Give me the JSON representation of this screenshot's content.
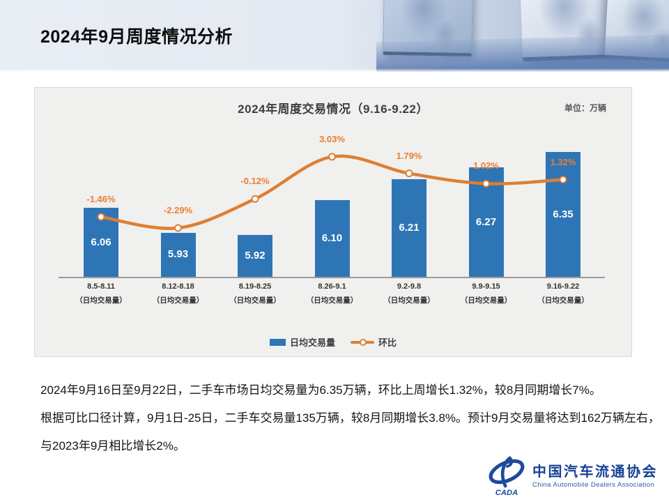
{
  "slide": {
    "title": "2024年9月周度情况分析"
  },
  "chart_data": {
    "type": "bar",
    "title": "2024年周度交易情况（9.16-9.22）",
    "unit_label": "单位：万辆",
    "categories": [
      "8.5-8.11",
      "8.12-8.18",
      "8.19-8.25",
      "8.26-9.1",
      "9.2-9.8",
      "9.9-9.15",
      "9.16-9.22"
    ],
    "category_sublabel": "（日均交易量）",
    "series": [
      {
        "name": "日均交易量",
        "type": "bar",
        "values": [
          6.06,
          5.93,
          5.92,
          6.1,
          6.21,
          6.27,
          6.35
        ],
        "value_labels": [
          "6.06",
          "5.93",
          "5.92",
          "6.10",
          "6.21",
          "6.27",
          "6.35"
        ],
        "color": "#2e75b6"
      },
      {
        "name": "环比",
        "type": "line",
        "values": [
          -1.46,
          -2.29,
          -0.12,
          3.03,
          1.79,
          1.02,
          1.32
        ],
        "value_labels": [
          "-1.46%",
          "-2.29%",
          "-0.12%",
          "3.03%",
          "1.79%",
          "1.02%",
          "1.32%"
        ],
        "color": "#de7e33"
      }
    ],
    "bar_axis_range": [
      5.7,
      6.5
    ],
    "pct_axis_visible": false,
    "grid": false,
    "legend_position": "bottom"
  },
  "body": {
    "lines": [
      "2024年9月16日至9月22日，二手车市场日均交易量为6.35万辆，环比上周增长1.32%，较8月同期增长7%。",
      "根据可比口径计算，9月1日-25日，二手车交易量135万辆，较8月同期增长3.8%。预计9月交易量将达到162万辆左右，",
      "与2023年9月相比增长2%。"
    ]
  },
  "logo": {
    "cn": "中国汽车流通协会",
    "en": "China Automobile Dealers Association",
    "badge": "CADA"
  },
  "colors": {
    "bar": "#2e75b6",
    "line": "#de7e33",
    "pct_label": "#ed7d31",
    "panel_bg": "#f0f0ef",
    "logo_blue": "#164194"
  }
}
